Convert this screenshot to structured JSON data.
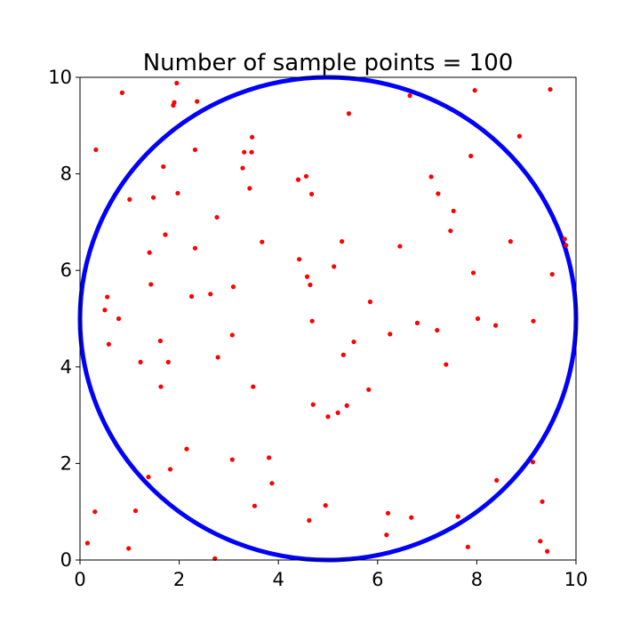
{
  "chart_data": {
    "type": "scatter",
    "title": "Number of sample points = 100",
    "xlabel": "",
    "ylabel": "",
    "xlim": [
      0,
      10
    ],
    "ylim": [
      0,
      10
    ],
    "xticks": [
      "0",
      "2",
      "4",
      "6",
      "8",
      "10"
    ],
    "yticks": [
      "0",
      "2",
      "4",
      "6",
      "8",
      "10"
    ],
    "grid": false,
    "circle": {
      "center": [
        5,
        5
      ],
      "radius": 5,
      "color": "#0000ff"
    },
    "point_color": "#ff0000",
    "points": [
      [
        0.15,
        0.35
      ],
      [
        0.3,
        1.0
      ],
      [
        0.32,
        8.5
      ],
      [
        0.5,
        5.18
      ],
      [
        0.55,
        5.45
      ],
      [
        0.58,
        4.47
      ],
      [
        0.78,
        5.0
      ],
      [
        0.85,
        9.68
      ],
      [
        0.98,
        0.24
      ],
      [
        1.0,
        7.47
      ],
      [
        1.12,
        1.02
      ],
      [
        1.22,
        4.1
      ],
      [
        1.38,
        1.72
      ],
      [
        1.4,
        6.37
      ],
      [
        1.43,
        5.71
      ],
      [
        1.48,
        7.51
      ],
      [
        1.62,
        4.54
      ],
      [
        1.63,
        3.59
      ],
      [
        1.68,
        8.15
      ],
      [
        1.72,
        6.74
      ],
      [
        1.78,
        4.1
      ],
      [
        1.82,
        1.88
      ],
      [
        1.88,
        9.42
      ],
      [
        1.9,
        9.48
      ],
      [
        1.95,
        9.88
      ],
      [
        1.97,
        7.6
      ],
      [
        2.15,
        2.3
      ],
      [
        2.25,
        5.46
      ],
      [
        2.32,
        6.46
      ],
      [
        2.32,
        8.5
      ],
      [
        2.36,
        9.5
      ],
      [
        2.63,
        5.51
      ],
      [
        2.72,
        0.03
      ],
      [
        2.76,
        7.1
      ],
      [
        2.78,
        4.2
      ],
      [
        3.07,
        4.66
      ],
      [
        3.07,
        2.08
      ],
      [
        3.09,
        5.66
      ],
      [
        3.28,
        8.12
      ],
      [
        3.31,
        8.45
      ],
      [
        3.42,
        7.7
      ],
      [
        3.46,
        8.45
      ],
      [
        3.47,
        8.76
      ],
      [
        3.49,
        3.59
      ],
      [
        3.52,
        1.12
      ],
      [
        3.67,
        6.59
      ],
      [
        3.81,
        2.12
      ],
      [
        3.87,
        1.59
      ],
      [
        4.4,
        7.88
      ],
      [
        4.42,
        6.23
      ],
      [
        4.56,
        7.95
      ],
      [
        4.58,
        5.87
      ],
      [
        4.62,
        0.82
      ],
      [
        4.64,
        5.7
      ],
      [
        4.67,
        7.58
      ],
      [
        4.68,
        4.95
      ],
      [
        4.7,
        3.22
      ],
      [
        4.95,
        1.13
      ],
      [
        5.0,
        2.97
      ],
      [
        5.12,
        6.08
      ],
      [
        5.2,
        3.05
      ],
      [
        5.28,
        6.6
      ],
      [
        5.31,
        4.25
      ],
      [
        5.38,
        3.2
      ],
      [
        5.42,
        9.25
      ],
      [
        5.52,
        4.52
      ],
      [
        5.82,
        3.53
      ],
      [
        5.85,
        5.35
      ],
      [
        6.18,
        0.52
      ],
      [
        6.21,
        0.97
      ],
      [
        6.25,
        4.68
      ],
      [
        6.45,
        6.5
      ],
      [
        6.65,
        9.62
      ],
      [
        6.68,
        0.88
      ],
      [
        6.8,
        4.91
      ],
      [
        7.08,
        7.94
      ],
      [
        7.2,
        4.76
      ],
      [
        7.22,
        7.59
      ],
      [
        7.38,
        4.05
      ],
      [
        7.47,
        6.82
      ],
      [
        7.53,
        7.23
      ],
      [
        7.62,
        0.9
      ],
      [
        7.82,
        0.27
      ],
      [
        7.88,
        8.37
      ],
      [
        7.93,
        5.95
      ],
      [
        7.96,
        9.73
      ],
      [
        8.02,
        5.0
      ],
      [
        8.38,
        4.86
      ],
      [
        8.4,
        1.65
      ],
      [
        8.68,
        6.6
      ],
      [
        8.86,
        8.78
      ],
      [
        9.13,
        2.03
      ],
      [
        9.14,
        4.95
      ],
      [
        9.28,
        0.39
      ],
      [
        9.32,
        1.21
      ],
      [
        9.42,
        0.18
      ],
      [
        9.48,
        9.75
      ],
      [
        9.52,
        5.92
      ],
      [
        9.77,
        6.65
      ],
      [
        9.8,
        6.52
      ]
    ]
  }
}
